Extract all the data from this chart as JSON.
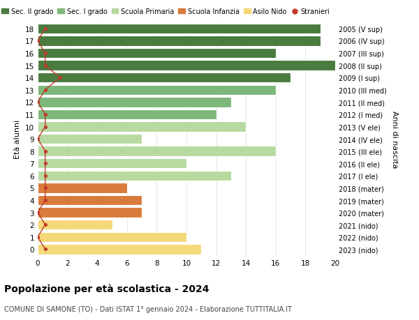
{
  "ages": [
    18,
    17,
    16,
    15,
    14,
    13,
    12,
    11,
    10,
    9,
    8,
    7,
    6,
    5,
    4,
    3,
    2,
    1,
    0
  ],
  "values": [
    19,
    19,
    16,
    20,
    17,
    16,
    13,
    12,
    14,
    7,
    16,
    10,
    13,
    6,
    7,
    7,
    5,
    10,
    11
  ],
  "stranieri": [
    0.5,
    0,
    0.5,
    0.5,
    1.5,
    0.5,
    0,
    0.5,
    0.5,
    0,
    0.5,
    0.5,
    0.5,
    0.5,
    0.5,
    0,
    0.5,
    0,
    0.5
  ],
  "right_labels": [
    "2005 (V sup)",
    "2006 (IV sup)",
    "2007 (III sup)",
    "2008 (II sup)",
    "2009 (I sup)",
    "2010 (III med)",
    "2011 (II med)",
    "2012 (I med)",
    "2013 (V ele)",
    "2014 (IV ele)",
    "2015 (III ele)",
    "2016 (II ele)",
    "2017 (I ele)",
    "2018 (mater)",
    "2019 (mater)",
    "2020 (mater)",
    "2021 (nido)",
    "2022 (nido)",
    "2023 (nido)"
  ],
  "bar_colors": [
    "#4a7c3f",
    "#4a7c3f",
    "#4a7c3f",
    "#4a7c3f",
    "#4a7c3f",
    "#7db87a",
    "#7db87a",
    "#7db87a",
    "#b8d9a0",
    "#b8d9a0",
    "#b8d9a0",
    "#b8d9a0",
    "#b8d9a0",
    "#d97b3a",
    "#d97b3a",
    "#d97b3a",
    "#f5d87a",
    "#f5d87a",
    "#f5d87a"
  ],
  "legend_labels": [
    "Sec. II grado",
    "Sec. I grado",
    "Scuola Primaria",
    "Scuola Infanzia",
    "Asilo Nido",
    "Stranieri"
  ],
  "legend_colors": [
    "#4a7c3f",
    "#7db87a",
    "#b8d9a0",
    "#d97b3a",
    "#f5d87a",
    "#c0392b"
  ],
  "stranieri_color": "#c0392b",
  "title": "Popolazione per età scolastica - 2024",
  "subtitle": "COMUNE DI SAMONE (TO) - Dati ISTAT 1° gennaio 2024 - Elaborazione TUTTITALIA.IT",
  "ylabel": "Età alunni",
  "right_ylabel": "Anni di nascita",
  "xlim": [
    0,
    20
  ],
  "xticks": [
    0,
    2,
    4,
    6,
    8,
    10,
    12,
    14,
    16,
    18,
    20
  ],
  "background_color": "#ffffff",
  "grid_color": "#cccccc"
}
